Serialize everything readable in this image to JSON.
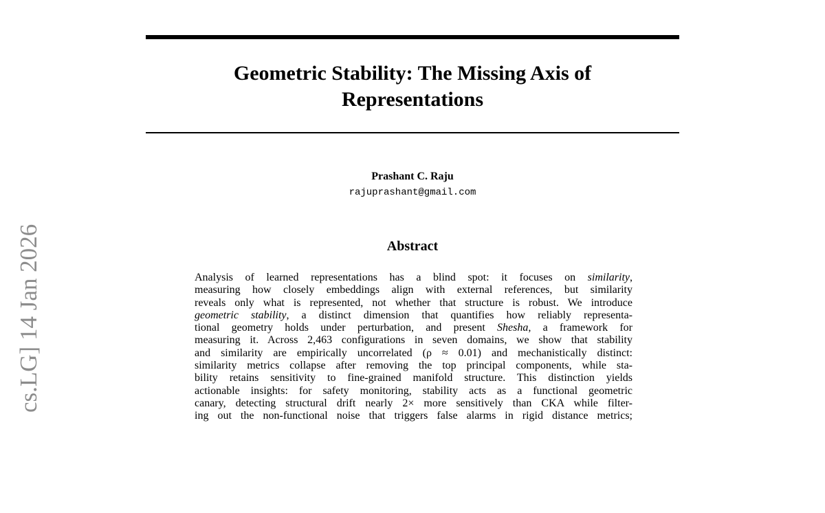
{
  "header": {
    "title": "Geometric Stability: The Missing Axis of Representations"
  },
  "side_stamp": "cs.LG]  14 Jan 2026",
  "author": {
    "name": "Prashant C. Raju",
    "email": "rajuprashant@gmail.com"
  },
  "abstract": {
    "heading": "Abstract",
    "lines": [
      [
        "Analysis of learned representations has a blind spot:  it focuses on ",
        "similarity",
        ","
      ],
      [
        "measuring how closely embeddings align with external references, but similarity"
      ],
      [
        "reveals only what is represented, not whether that structure is robust. We introduce"
      ],
      [
        "geometric stability",
        ", a distinct dimension that quantifies how reliably representa-"
      ],
      [
        "tional geometry holds under perturbation, and present ",
        "Shesha",
        ", a framework for"
      ],
      [
        "measuring it. Across 2,463 configurations in seven domains, we show that stability"
      ],
      [
        "and similarity are empirically uncorrelated (ρ ≈ 0.01) and mechanistically distinct:"
      ],
      [
        "similarity metrics collapse after removing the top principal components, while sta-"
      ],
      [
        "bility retains sensitivity to fine-grained manifold structure. This distinction yields"
      ],
      [
        "actionable insights: for safety monitoring, stability acts as a functional geometric"
      ],
      [
        "canary, detecting structural drift nearly 2× more sensitively than CKA while filter-"
      ],
      [
        "ing out the non-functional noise that triggers false alarms in rigid distance metrics;"
      ]
    ]
  }
}
